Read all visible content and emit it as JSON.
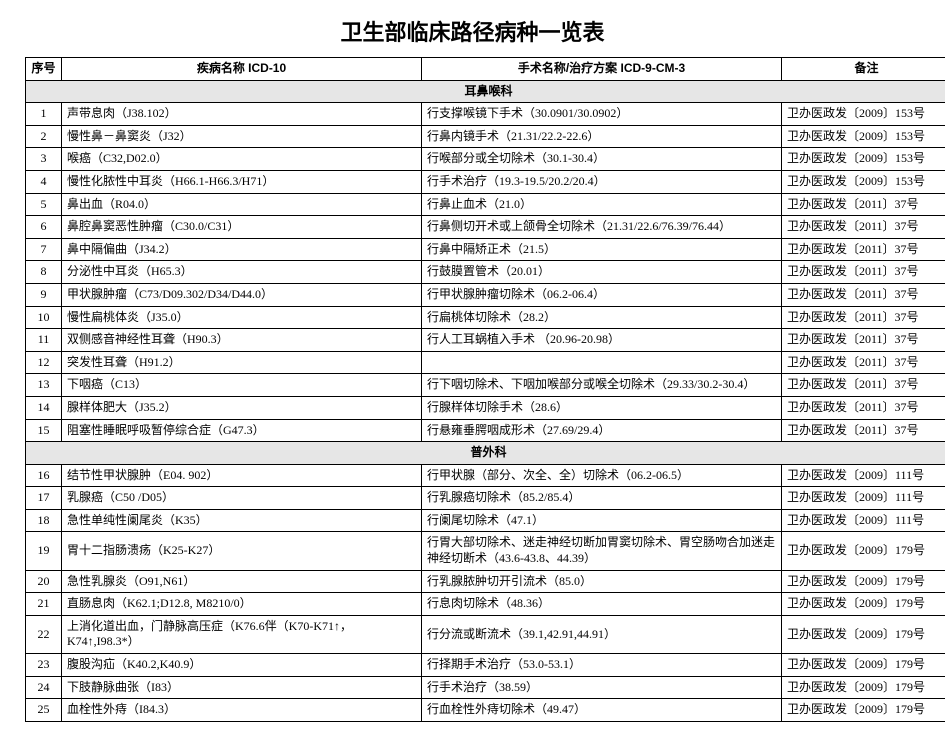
{
  "title": "卫生部临床路径病种一览表",
  "columns": {
    "index": "序号",
    "disease": "疾病名称 ICD-10",
    "surgery": "手术名称/治疗方案  ICD-9-CM-3",
    "note": "备注"
  },
  "sections": [
    {
      "name": "耳鼻喉科",
      "rows": [
        {
          "idx": "1",
          "disease": "声带息肉（J38.102）",
          "surgery": "行支撑喉镜下手术（30.0901/30.0902）",
          "note": "卫办医政发〔2009〕153号"
        },
        {
          "idx": "2",
          "disease": "慢性鼻－鼻窦炎（J32）",
          "surgery": "行鼻内镜手术（21.31/22.2-22.6）",
          "note": "卫办医政发〔2009〕153号"
        },
        {
          "idx": "3",
          "disease": "喉癌（C32,D02.0）",
          "surgery": "行喉部分或全切除术（30.1-30.4）",
          "note": "卫办医政发〔2009〕153号"
        },
        {
          "idx": "4",
          "disease": "慢性化脓性中耳炎（H66.1-H66.3/H71）",
          "surgery": "行手术治疗（19.3-19.5/20.2/20.4）",
          "note": "卫办医政发〔2009〕153号"
        },
        {
          "idx": "5",
          "disease": "鼻出血（R04.0）",
          "surgery": "行鼻止血术（21.0）",
          "note": "卫办医政发〔2011〕37号"
        },
        {
          "idx": "6",
          "disease": "鼻腔鼻窦恶性肿瘤（C30.0/C31）",
          "surgery": "行鼻侧切开术或上颌骨全切除术（21.31/22.6/76.39/76.44）",
          "note": "卫办医政发〔2011〕37号"
        },
        {
          "idx": "7",
          "disease": "鼻中隔偏曲（J34.2）",
          "surgery": "行鼻中隔矫正术（21.5）",
          "note": "卫办医政发〔2011〕37号"
        },
        {
          "idx": "8",
          "disease": "分泌性中耳炎（H65.3）",
          "surgery": "行鼓膜置管术（20.01）",
          "note": "卫办医政发〔2011〕37号"
        },
        {
          "idx": "9",
          "disease": "甲状腺肿瘤（C73/D09.302/D34/D44.0）",
          "surgery": "行甲状腺肿瘤切除术（06.2-06.4）",
          "note": "卫办医政发〔2011〕37号"
        },
        {
          "idx": "10",
          "disease": "慢性扁桃体炎（J35.0）",
          "surgery": "行扁桃体切除术（28.2）",
          "note": "卫办医政发〔2011〕37号"
        },
        {
          "idx": "11",
          "disease": "双侧感音神经性耳聋（H90.3）",
          "surgery": "行人工耳蜗植入手术 （20.96-20.98）",
          "note": "卫办医政发〔2011〕37号"
        },
        {
          "idx": "12",
          "disease": "突发性耳聋（H91.2）",
          "surgery": "",
          "note": "卫办医政发〔2011〕37号"
        },
        {
          "idx": "13",
          "disease": "下咽癌（C13）",
          "surgery": "行下咽切除术、下咽加喉部分或喉全切除术（29.33/30.2-30.4）",
          "note": "卫办医政发〔2011〕37号"
        },
        {
          "idx": "14",
          "disease": "腺样体肥大（J35.2）",
          "surgery": "行腺样体切除手术（28.6）",
          "note": "卫办医政发〔2011〕37号"
        },
        {
          "idx": "15",
          "disease": "阻塞性睡眠呼吸暂停综合症（G47.3）",
          "surgery": "行悬雍垂腭咽成形术（27.69/29.4）",
          "note": "卫办医政发〔2011〕37号"
        }
      ]
    },
    {
      "name": "普外科",
      "rows": [
        {
          "idx": "16",
          "disease": "结节性甲状腺肿（E04. 902）",
          "surgery": "行甲状腺（部分、次全、全）切除术（06.2-06.5）",
          "note": "卫办医政发〔2009〕111号"
        },
        {
          "idx": "17",
          "disease": "乳腺癌（C50 /D05）",
          "surgery": "行乳腺癌切除术（85.2/85.4）",
          "note": "卫办医政发〔2009〕111号"
        },
        {
          "idx": "18",
          "disease": "急性单纯性阑尾炎（K35）",
          "surgery": "行阑尾切除术（47.1）",
          "note": "卫办医政发〔2009〕111号"
        },
        {
          "idx": "19",
          "disease": "胃十二指肠溃疡（K25-K27）",
          "surgery": "行胃大部切除术、迷走神经切断加胃窦切除术、胃空肠吻合加迷走神经切断术（43.6-43.8、44.39）",
          "note": "卫办医政发〔2009〕179号"
        },
        {
          "idx": "20",
          "disease": "急性乳腺炎（O91,N61）",
          "surgery": "行乳腺脓肿切开引流术（85.0）",
          "note": "卫办医政发〔2009〕179号"
        },
        {
          "idx": "21",
          "disease": "直肠息肉（K62.1;D12.8, M8210/0）",
          "surgery": "行息肉切除术（48.36）",
          "note": "卫办医政发〔2009〕179号"
        },
        {
          "idx": "22",
          "disease": "上消化道出血，门静脉高压症（K76.6伴（K70-K71↑，K74↑,I98.3*）",
          "surgery": "行分流或断流术（39.1,42.91,44.91）",
          "note": "卫办医政发〔2009〕179号"
        },
        {
          "idx": "23",
          "disease": "腹股沟疝（K40.2,K40.9）",
          "surgery": "行择期手术治疗（53.0-53.1）",
          "note": "卫办医政发〔2009〕179号"
        },
        {
          "idx": "24",
          "disease": "下肢静脉曲张（I83）",
          "surgery": "行手术治疗（38.59）",
          "note": "卫办医政发〔2009〕179号"
        },
        {
          "idx": "25",
          "disease": "血栓性外痔（I84.3）",
          "surgery": "行血栓性外痔切除术（49.47）",
          "note": "卫办医政发〔2009〕179号"
        }
      ]
    }
  ]
}
